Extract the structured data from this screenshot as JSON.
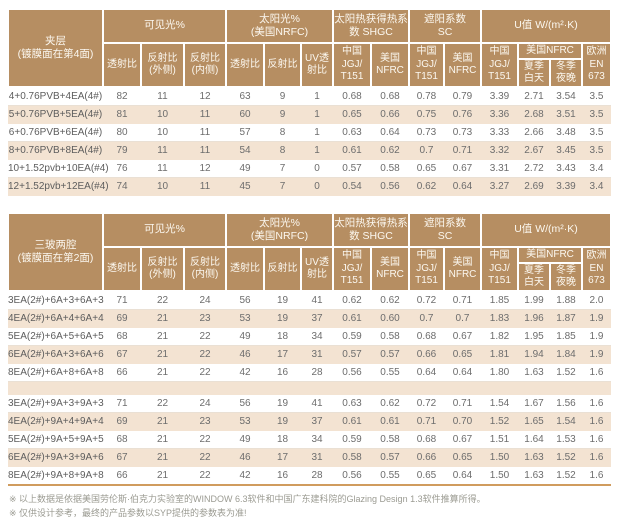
{
  "colors": {
    "header_bg": "#b68e62",
    "stripe_bg": "#f3e3d2",
    "bottom_border": "#d09c5e",
    "header_text": "#fcf8f0",
    "body_text": "#6d6d6d",
    "note_text": "#9b9b92"
  },
  "header": {
    "group_row": [
      {
        "text": "可见光%",
        "colspan": 3
      },
      {
        "text": "太阳光%\n(美国NRFC)",
        "colspan": 3
      },
      {
        "text": "太阳热获得热系\n数 SHGC",
        "colspan": 2
      },
      {
        "text": "遮阳系数\nSC",
        "colspan": 2
      },
      {
        "text": "U值 W/(m²·K)",
        "colspan": 4
      }
    ],
    "sub_row": [
      {
        "text": "透射比",
        "rowspan": 2
      },
      {
        "text": "反射比\n(外侧)",
        "rowspan": 2
      },
      {
        "text": "反射比\n(内侧)",
        "rowspan": 2
      },
      {
        "text": "透射比",
        "rowspan": 2
      },
      {
        "text": "反射比",
        "rowspan": 2
      },
      {
        "text": "UV透\n射比",
        "rowspan": 2
      },
      {
        "text": "中国\nJGJ/\nT151",
        "rowspan": 2
      },
      {
        "text": "美国\nNFRC",
        "rowspan": 2
      },
      {
        "text": "中国\nJGJ/\nT151",
        "rowspan": 2
      },
      {
        "text": "美国\nNFRC",
        "rowspan": 2
      },
      {
        "text": "中国\nJGJ/\nT151",
        "rowspan": 2
      },
      {
        "text": "美国NFRC",
        "colspan": 2
      },
      {
        "text": "欧洲\nEN\n673",
        "rowspan": 2
      }
    ],
    "sub_sub_row": [
      {
        "text": "夏季\n白天"
      },
      {
        "text": "冬季\n夜晚"
      }
    ]
  },
  "table1": {
    "corner_label": "夹层\n(镀膜面在第4面)",
    "row_groups": [
      [
        {
          "label": "4+0.76PVB+4EA(4#)",
          "values": [
            "82",
            "11",
            "12",
            "63",
            "9",
            "1",
            "0.68",
            "0.68",
            "0.78",
            "0.79",
            "3.39",
            "2.71",
            "3.54",
            "3.5"
          ]
        },
        {
          "label": "5+0.76PVB+5EA(4#)",
          "values": [
            "81",
            "10",
            "11",
            "60",
            "9",
            "1",
            "0.65",
            "0.66",
            "0.75",
            "0.76",
            "3.36",
            "2.68",
            "3.51",
            "3.5"
          ]
        },
        {
          "label": "6+0.76PVB+6EA(4#)",
          "values": [
            "80",
            "10",
            "11",
            "57",
            "8",
            "1",
            "0.63",
            "0.64",
            "0.73",
            "0.73",
            "3.33",
            "2.66",
            "3.48",
            "3.5"
          ]
        },
        {
          "label": "8+0.76PVB+8EA(4#)",
          "values": [
            "79",
            "11",
            "11",
            "54",
            "8",
            "1",
            "0.61",
            "0.62",
            "0.7",
            "0.71",
            "3.32",
            "2.67",
            "3.45",
            "3.5"
          ]
        },
        {
          "label": "10+1.52pvb+10EA(#4)",
          "values": [
            "76",
            "11",
            "12",
            "49",
            "7",
            "0",
            "0.57",
            "0.58",
            "0.65",
            "0.67",
            "3.31",
            "2.72",
            "3.43",
            "3.4"
          ]
        },
        {
          "label": "12+1.52pvb+12EA(#4)",
          "values": [
            "74",
            "10",
            "11",
            "45",
            "7",
            "0",
            "0.54",
            "0.56",
            "0.62",
            "0.64",
            "3.27",
            "2.69",
            "3.39",
            "3.4"
          ]
        }
      ]
    ]
  },
  "table2": {
    "corner_label": "三玻两腔\n(镀膜面在第2面)",
    "row_groups": [
      [
        {
          "label": "3EA(2#)+6A+3+6A+3",
          "values": [
            "71",
            "22",
            "24",
            "56",
            "19",
            "41",
            "0.62",
            "0.62",
            "0.72",
            "0.71",
            "1.85",
            "1.99",
            "1.88",
            "2.0"
          ]
        },
        {
          "label": "4EA(2#)+6A+4+6A+4",
          "values": [
            "69",
            "21",
            "23",
            "53",
            "19",
            "37",
            "0.61",
            "0.60",
            "0.7",
            "0.7",
            "1.83",
            "1.96",
            "1.87",
            "1.9"
          ]
        },
        {
          "label": "5EA(2#)+6A+5+6A+5",
          "values": [
            "68",
            "21",
            "22",
            "49",
            "18",
            "34",
            "0.59",
            "0.58",
            "0.68",
            "0.67",
            "1.82",
            "1.95",
            "1.85",
            "1.9"
          ]
        },
        {
          "label": "6EA(2#)+6A+3+6A+6",
          "values": [
            "67",
            "21",
            "22",
            "46",
            "17",
            "31",
            "0.57",
            "0.57",
            "0.66",
            "0.65",
            "1.81",
            "1.94",
            "1.84",
            "1.9"
          ]
        },
        {
          "label": "8EA(2#)+6A+8+6A+8",
          "values": [
            "66",
            "21",
            "22",
            "42",
            "16",
            "28",
            "0.56",
            "0.55",
            "0.64",
            "0.64",
            "1.80",
            "1.63",
            "1.52",
            "1.6"
          ]
        }
      ],
      [
        {
          "label": "3EA(2#)+9A+3+9A+3",
          "values": [
            "71",
            "22",
            "24",
            "56",
            "19",
            "41",
            "0.63",
            "0.62",
            "0.72",
            "0.71",
            "1.54",
            "1.67",
            "1.56",
            "1.6"
          ]
        },
        {
          "label": "4EA(2#)+9A+4+9A+4",
          "values": [
            "69",
            "21",
            "23",
            "53",
            "19",
            "37",
            "0.61",
            "0.61",
            "0.71",
            "0.70",
            "1.52",
            "1.65",
            "1.54",
            "1.6"
          ]
        },
        {
          "label": "5EA(2#)+9A+5+9A+5",
          "values": [
            "68",
            "21",
            "22",
            "49",
            "18",
            "34",
            "0.59",
            "0.58",
            "0.68",
            "0.67",
            "1.51",
            "1.64",
            "1.53",
            "1.6"
          ]
        },
        {
          "label": "6EA(2#)+9A+3+9A+6",
          "values": [
            "67",
            "21",
            "22",
            "46",
            "17",
            "31",
            "0.58",
            "0.57",
            "0.66",
            "0.65",
            "1.50",
            "1.63",
            "1.52",
            "1.6"
          ]
        },
        {
          "label": "8EA(2#)+9A+8+9A+8",
          "values": [
            "66",
            "21",
            "22",
            "42",
            "16",
            "28",
            "0.56",
            "0.55",
            "0.65",
            "0.64",
            "1.50",
            "1.63",
            "1.52",
            "1.6"
          ]
        }
      ]
    ]
  },
  "footnotes": {
    "line1": "※ 以上数据是依据美国劳伦斯·伯克力实验室的WINDOW 6.3软件和中国广东建科院的Glazing Design 1.3软件推算所得。",
    "line2": "※ 仅供设计参考，最终的产品参数以SYP提供的参数表为准!"
  }
}
